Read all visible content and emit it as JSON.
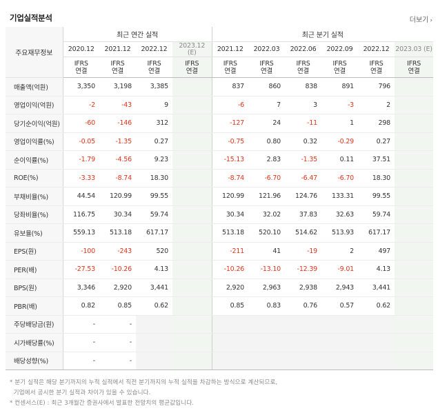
{
  "header": {
    "title": "기업실적분석",
    "more_label": "더보기",
    "more_icon": "chevron-right-icon"
  },
  "table": {
    "label_header": "주요재무정보",
    "annual_group": "최근 연간 실적",
    "quarter_group": "최근 분기 실적",
    "periods": [
      "2020.12",
      "2021.12",
      "2022.12",
      "2023.12\n(E)",
      "2021.12",
      "2022.03",
      "2022.06",
      "2022.09",
      "2022.12",
      "2023.03 (E)"
    ],
    "basis": [
      "IFRS\n연결",
      "IFRS\n연결",
      "IFRS\n연결",
      "IFRS\n연결",
      "IFRS\n연결",
      "IFRS\n연결",
      "IFRS\n연결",
      "IFRS\n연결",
      "IFRS\n연결",
      "IFRS\n연결"
    ],
    "rows": [
      {
        "label": "매출액(억원)",
        "values": [
          "3,350",
          "3,198",
          "3,385",
          "",
          "837",
          "860",
          "838",
          "891",
          "796",
          ""
        ]
      },
      {
        "label": "영업이익(억원)",
        "values": [
          "-2",
          "-43",
          "9",
          "",
          "-6",
          "7",
          "3",
          "-3",
          "2",
          ""
        ]
      },
      {
        "label": "당기순이익(억원)",
        "values": [
          "-60",
          "-146",
          "312",
          "",
          "-127",
          "24",
          "-11",
          "1",
          "298",
          ""
        ]
      },
      {
        "label": "영업이익률(%)",
        "values": [
          "-0.05",
          "-1.35",
          "0.27",
          "",
          "-0.75",
          "0.80",
          "0.32",
          "-0.29",
          "0.27",
          ""
        ]
      },
      {
        "label": "순이익률(%)",
        "values": [
          "-1.79",
          "-4.56",
          "9.23",
          "",
          "-15.13",
          "2.83",
          "-1.35",
          "0.11",
          "37.51",
          ""
        ]
      },
      {
        "label": "ROE(%)",
        "values": [
          "-3.33",
          "-8.74",
          "18.30",
          "",
          "-8.74",
          "-6.70",
          "-6.47",
          "-6.70",
          "18.30",
          ""
        ]
      },
      {
        "label": "부채비율(%)",
        "values": [
          "44.54",
          "120.99",
          "99.55",
          "",
          "120.99",
          "121.96",
          "124.76",
          "133.31",
          "99.55",
          ""
        ]
      },
      {
        "label": "당좌비율(%)",
        "values": [
          "116.75",
          "30.34",
          "59.74",
          "",
          "30.34",
          "32.02",
          "37.83",
          "32.63",
          "59.74",
          ""
        ]
      },
      {
        "label": "유보율(%)",
        "values": [
          "559.13",
          "513.18",
          "617.17",
          "",
          "513.18",
          "520.10",
          "514.62",
          "513.93",
          "617.17",
          ""
        ]
      },
      {
        "label": "EPS(원)",
        "values": [
          "-100",
          "-243",
          "520",
          "",
          "-211",
          "41",
          "-19",
          "2",
          "497",
          ""
        ]
      },
      {
        "label": "PER(배)",
        "values": [
          "-27.53",
          "-10.26",
          "4.13",
          "",
          "-10.26",
          "-13.10",
          "-12.39",
          "-9.01",
          "4.13",
          ""
        ]
      },
      {
        "label": "BPS(원)",
        "values": [
          "3,346",
          "2,920",
          "3,441",
          "",
          "2,920",
          "2,963",
          "2,938",
          "2,943",
          "3,441",
          ""
        ]
      },
      {
        "label": "PBR(배)",
        "values": [
          "0.82",
          "0.85",
          "0.62",
          "",
          "0.85",
          "0.83",
          "0.76",
          "0.57",
          "0.62",
          ""
        ]
      },
      {
        "label": "주당배당금(원)",
        "values": [
          "-",
          "-",
          "",
          "",
          "",
          "",
          "",
          "",
          "",
          ""
        ]
      },
      {
        "label": "시가배당률(%)",
        "values": [
          "-",
          "-",
          "",
          "",
          "",
          "",
          "",
          "",
          "",
          ""
        ]
      },
      {
        "label": "배당성향(%)",
        "values": [
          "-",
          "-",
          "",
          "",
          "",
          "",
          "",
          "",
          "",
          ""
        ]
      }
    ]
  },
  "notes": [
    "* 분기 실적은 해당 분기까지의 누적 실적에서 직전 분기까지의 누적 실적을 차감하는 방식으로 계산되므로,",
    "  기업에서 공시한 분기 실적과 차이가 있을 수 있습니다.",
    "* 컨센서스(E) : 최근 3개월간 증권사에서 발표한 전망치의 평균값입니다."
  ]
}
